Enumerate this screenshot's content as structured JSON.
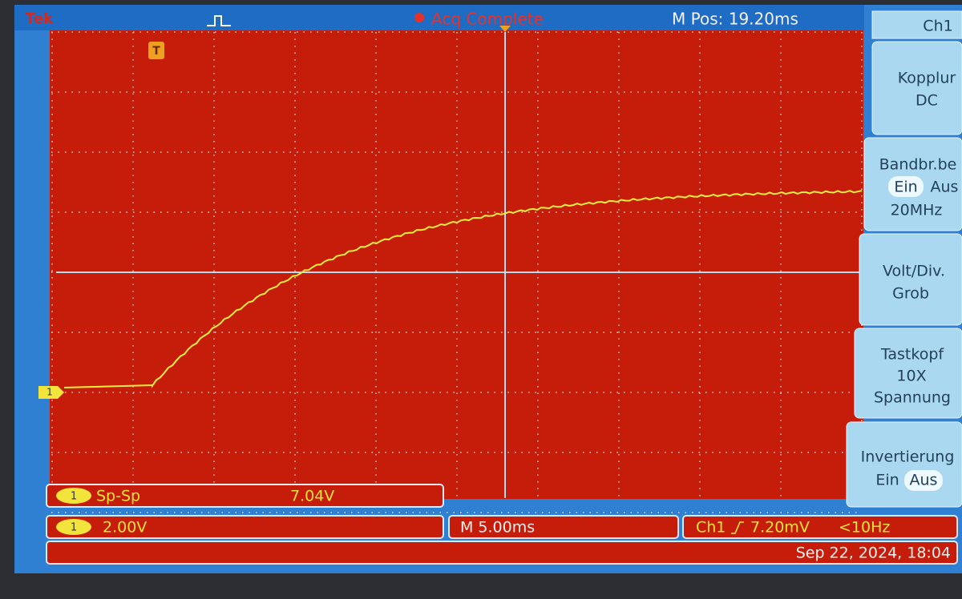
{
  "header": {
    "brand": "Tek",
    "acquisition": "Acq Complete",
    "position": "M Pos: 19.20ms"
  },
  "markers": {
    "trigger": "T",
    "channel": "1"
  },
  "menu": {
    "title": "Ch1",
    "items": [
      {
        "label": "Kopplur",
        "value": "DC"
      },
      {
        "label": "Bandbr.be",
        "options": [
          "Ein",
          "Aus"
        ],
        "value": "20MHz"
      },
      {
        "label": "Volt/Div.",
        "value": "Grob"
      },
      {
        "label": "Tastkopf",
        "value": "10X",
        "detail": "Spannung"
      },
      {
        "label": "Invertierung",
        "options": [
          "Ein",
          "Aus"
        ]
      }
    ]
  },
  "measurement": {
    "channel": "1",
    "name": "Sp-Sp",
    "value": "7.04V"
  },
  "status": {
    "channel": "1",
    "scale": "2.00V",
    "timebase": "M 5.00ms",
    "trigger_source": "Ch1",
    "trigger_level": "7.20mV",
    "frequency": "<10Hz",
    "timestamp": "Sep 22, 2024, 18:04"
  }
}
